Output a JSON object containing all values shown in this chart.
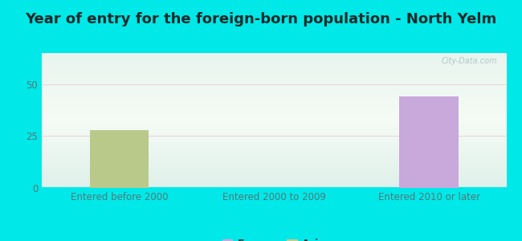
{
  "title": "Year of entry for the foreign-born population - North Yelm",
  "categories": [
    "Entered before 2000",
    "Entered 2000 to 2009",
    "Entered 2010 or later"
  ],
  "europe_values": [
    0,
    0,
    44
  ],
  "asia_values": [
    28,
    0,
    0
  ],
  "europe_color": "#c9a8dc",
  "asia_color": "#b8c98a",
  "ylim": [
    0,
    65
  ],
  "yticks": [
    0,
    25,
    50
  ],
  "outer_bg": "#00e8e8",
  "title_color": "#1a2a2a",
  "title_fontsize": 13,
  "tick_fontsize": 8.5,
  "tick_color": "#557777",
  "legend_europe_color": "#c9a8dc",
  "legend_asia_color": "#c8cc8a",
  "bar_width": 0.38,
  "watermark_color": "#b0c8c8"
}
